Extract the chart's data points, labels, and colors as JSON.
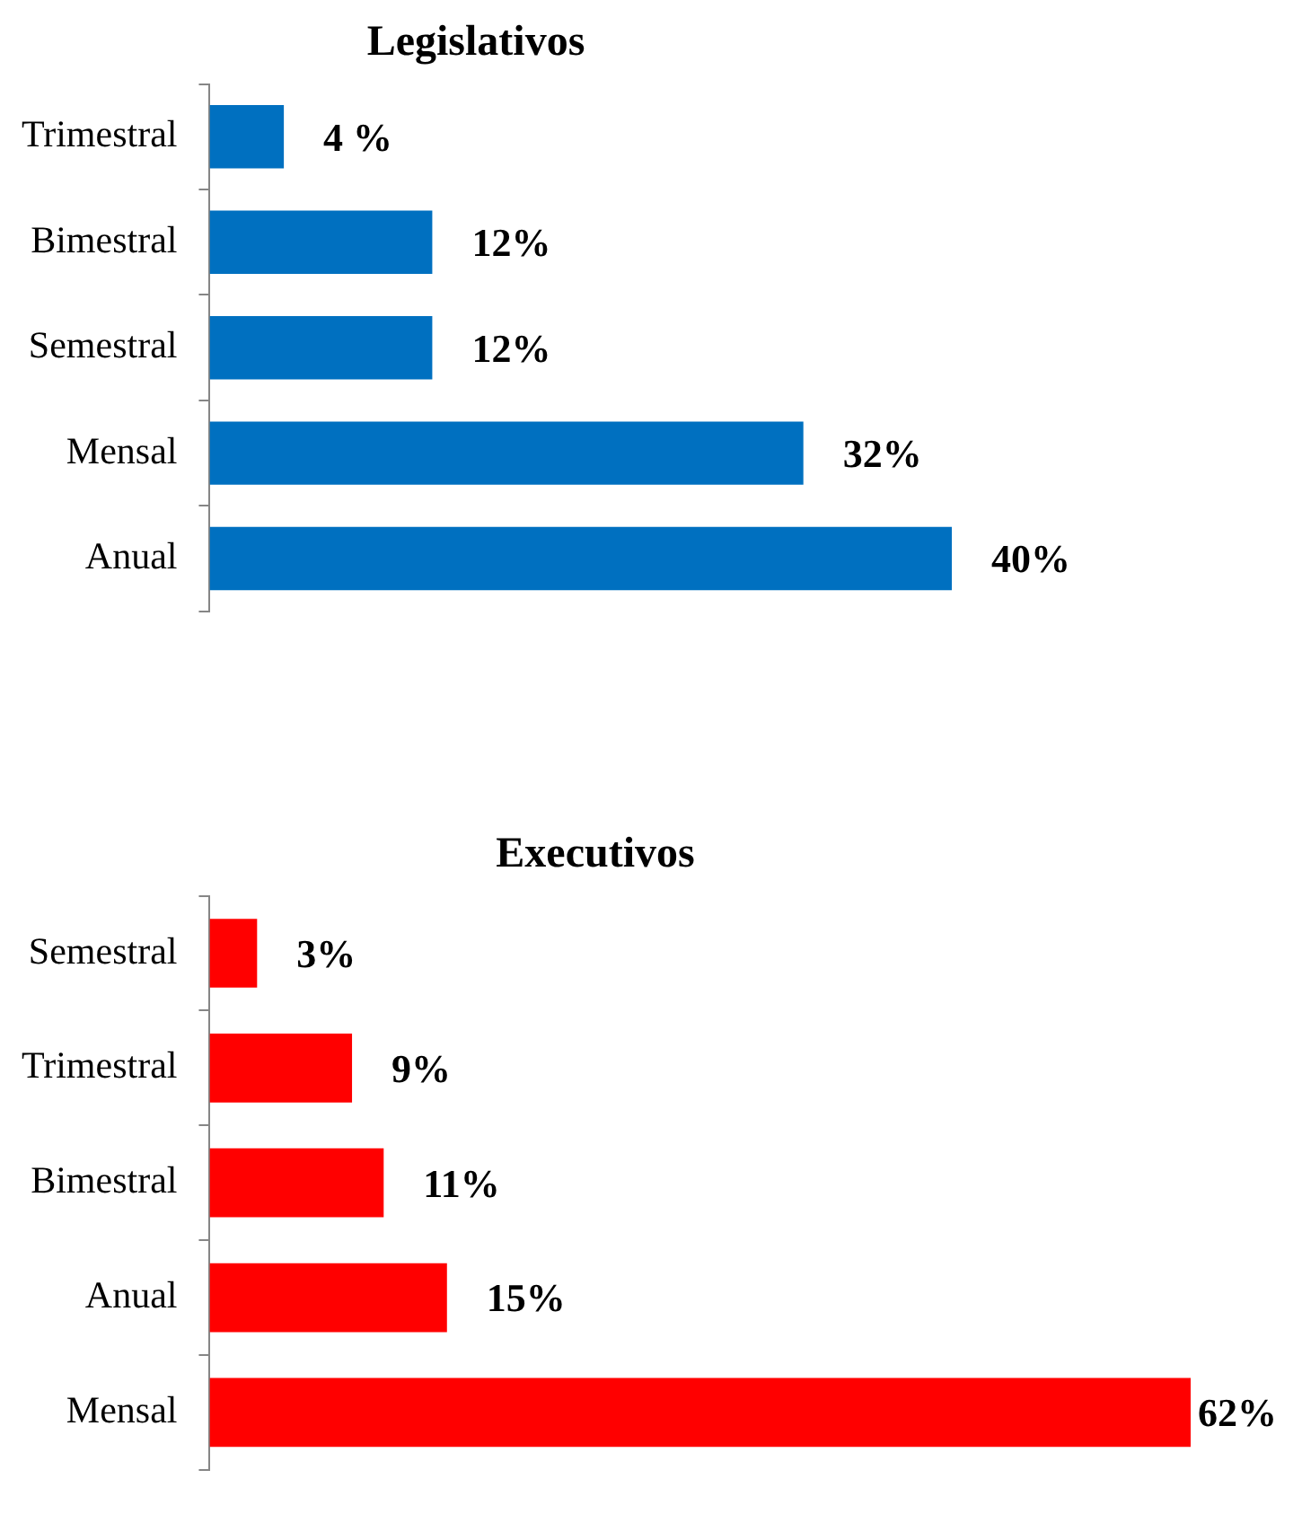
{
  "chart_data": [
    {
      "type": "bar",
      "orientation": "horizontal",
      "title": "Legislativos",
      "categories": [
        "Trimestral",
        "Bimestral",
        "Semestral",
        "Mensal",
        "Anual"
      ],
      "values": [
        4,
        12,
        12,
        32,
        40
      ],
      "value_labels": [
        "4 %",
        "12%",
        "12%",
        "32%",
        "40%"
      ],
      "color": "#0070c0",
      "tick_labels": "y",
      "grid": false,
      "legend": false
    },
    {
      "type": "bar",
      "orientation": "horizontal",
      "title": "Executivos",
      "categories": [
        "Semestral",
        "Trimestral",
        "Bimestral",
        "Anual",
        "Mensal"
      ],
      "values": [
        3,
        9,
        11,
        15,
        62
      ],
      "value_labels": [
        "3%",
        "9%",
        "11%",
        "15%",
        "62%"
      ],
      "color": "#ff0000",
      "tick_labels": "y",
      "grid": false,
      "legend": false
    }
  ]
}
